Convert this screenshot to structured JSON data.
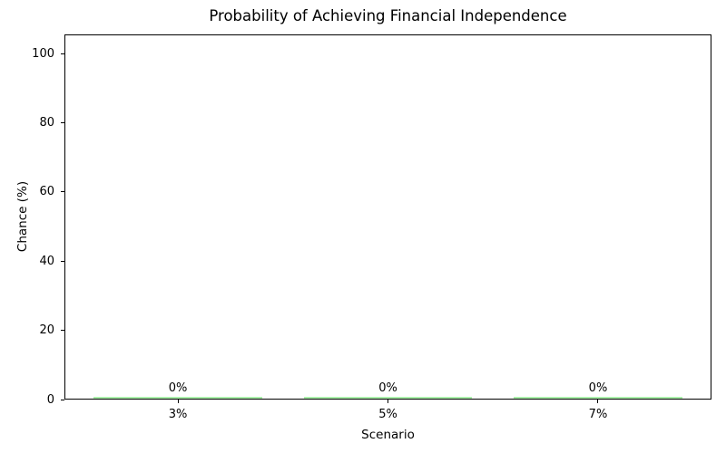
{
  "chart_data": {
    "type": "bar",
    "title": "Probability of Achieving Financial Independence",
    "xlabel": "Scenario",
    "ylabel": "Chance (%)",
    "categories": [
      "3%",
      "5%",
      "7%"
    ],
    "values": [
      0,
      0,
      0
    ],
    "value_labels": [
      "0%",
      "0%",
      "0%"
    ],
    "yticks": [
      0,
      20,
      40,
      60,
      80,
      100
    ],
    "ytick_labels": [
      "0",
      "20",
      "40",
      "60",
      "80",
      "100"
    ],
    "ylim": [
      0,
      105.5
    ],
    "bar_color": "#90ee90",
    "axis_color": "#000000",
    "text_color": "#000000",
    "grid": false,
    "legend": "none"
  }
}
